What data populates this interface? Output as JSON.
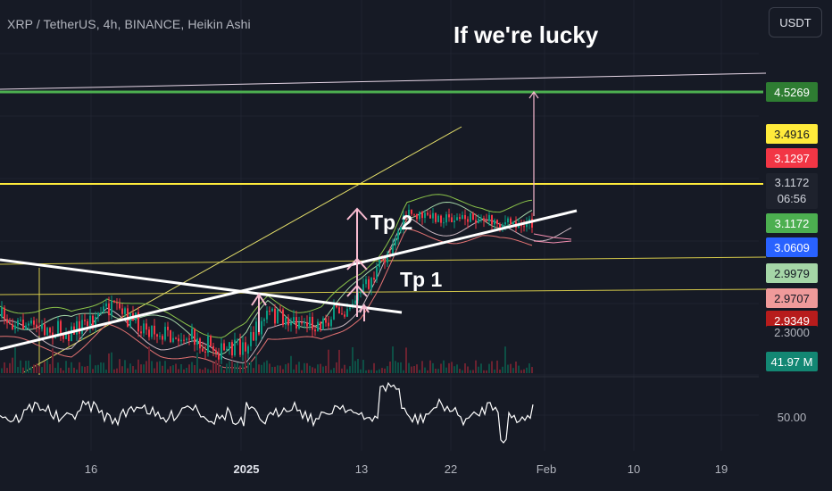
{
  "header": {
    "symbol_title": "XRP / TetherUS, 4h, BINANCE, Heikin Ashi",
    "currency": "USDT"
  },
  "annotations": {
    "headline": "If we're lucky",
    "tp1": "Tp 1",
    "tp2": "Tp 2"
  },
  "chart_data": {
    "type": "candlestick",
    "exchange": "BINANCE",
    "pair": "XRP / TetherUS",
    "interval": "4h",
    "candle_style": "Heikin Ashi",
    "x_tick_labels": [
      "16",
      "2025",
      "13",
      "22",
      "Feb",
      "10",
      "19"
    ],
    "price_tags": [
      {
        "label": "4.5269",
        "bg": "#2e7d32",
        "fg": "#ffffff"
      },
      {
        "label": "3.4916",
        "bg": "#ffeb3b",
        "fg": "#131722"
      },
      {
        "label": "3.1297",
        "bg": "#f23645",
        "fg": "#ffffff"
      },
      {
        "label": "3.1172",
        "sub": "06:56",
        "bg": "#1e222d",
        "fg": "#d1d4dc"
      },
      {
        "label": "3.1172",
        "bg": "#4caf50",
        "fg": "#ffffff"
      },
      {
        "label": "3.0609",
        "bg": "#2962ff",
        "fg": "#ffffff"
      },
      {
        "label": "2.9979",
        "bg": "#a5d6a7",
        "fg": "#131722"
      },
      {
        "label": "2.9707",
        "bg": "#ef9a9a",
        "fg": "#131722"
      },
      {
        "label": "2.9349",
        "bg": "#b71c1c",
        "fg": "#ffffff"
      },
      {
        "label": "2.3000",
        "bg": "#161a25",
        "fg": "#b2b5be"
      }
    ],
    "levels": {
      "target": 4.5269,
      "resistance": 3.1172
    },
    "volume_label": "41.97 M",
    "oscillator_label": "50.00",
    "colors": {
      "up": "#089981",
      "down": "#f23645",
      "target_line": "#4caf50",
      "level_line": "#ffeb3b",
      "trendline": "#ffffff",
      "arrow": "#f8bbd0"
    }
  }
}
